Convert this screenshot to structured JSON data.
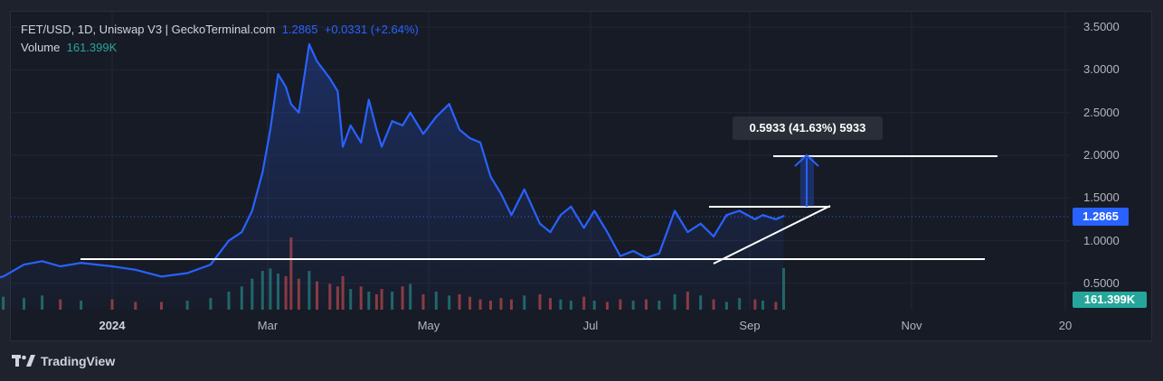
{
  "header": {
    "symbol_line": "FET/USD, 1D, Uniswap V3 | GeckoTerminal.com",
    "last_price": "1.2865",
    "change": "+0.0331 (+2.64%)",
    "volume_label": "Volume",
    "volume_value": "161.399K"
  },
  "price_scale_labels": [
    "3.5000",
    "3.0000",
    "2.5000",
    "2.0000",
    "1.5000",
    "1.0000",
    "0.5000"
  ],
  "time_labels": [
    {
      "text": "2024",
      "bold": true
    },
    {
      "text": "Mar",
      "bold": false
    },
    {
      "text": "May",
      "bold": false
    },
    {
      "text": "Jul",
      "bold": false
    },
    {
      "text": "Sep",
      "bold": false
    },
    {
      "text": "Nov",
      "bold": false
    },
    {
      "text": "20",
      "bold": false
    }
  ],
  "last_price_label": "1.2865",
  "volume_axis_label": "161.399K",
  "measure_label": "0.5933 (41.63%) 5933",
  "branding": "TradingView",
  "colors": {
    "background": "#171b26",
    "line": "#2962ff",
    "volume_up": "#26a69a",
    "volume_down": "#ef5350",
    "annotation": "#ffffff"
  },
  "chart_data": {
    "type": "line",
    "title": "FET/USD, 1D, Uniswap V3",
    "ylabel": "",
    "xlabel": "",
    "ylim": [
      0.35,
      3.6
    ],
    "x": [
      "2023-11-05",
      "2023-11-10",
      "2023-11-20",
      "2023-11-28",
      "2023-12-05",
      "2023-12-12",
      "2023-12-20",
      "2024-01-01",
      "2024-01-10",
      "2024-01-20",
      "2024-01-30",
      "2024-02-08",
      "2024-02-15",
      "2024-02-20",
      "2024-02-24",
      "2024-02-28",
      "2024-03-02",
      "2024-03-05",
      "2024-03-08",
      "2024-03-10",
      "2024-03-13",
      "2024-03-17",
      "2024-03-20",
      "2024-03-25",
      "2024-03-28",
      "2024-03-30",
      "2024-04-02",
      "2024-04-06",
      "2024-04-09",
      "2024-04-12",
      "2024-04-14",
      "2024-04-18",
      "2024-04-22",
      "2024-04-25",
      "2024-04-30",
      "2024-05-05",
      "2024-05-10",
      "2024-05-14",
      "2024-05-18",
      "2024-05-22",
      "2024-05-26",
      "2024-05-30",
      "2024-06-03",
      "2024-06-08",
      "2024-06-14",
      "2024-06-18",
      "2024-06-22",
      "2024-06-26",
      "2024-07-01",
      "2024-07-05",
      "2024-07-10",
      "2024-07-15",
      "2024-07-20",
      "2024-07-25",
      "2024-07-30",
      "2024-08-05",
      "2024-08-10",
      "2024-08-15",
      "2024-08-20",
      "2024-08-25",
      "2024-08-30",
      "2024-09-05",
      "2024-09-08",
      "2024-09-13",
      "2024-09-16"
    ],
    "series": [
      {
        "values": [
          0.52,
          0.52,
          0.58,
          0.72,
          0.76,
          0.7,
          0.74,
          0.7,
          0.66,
          0.58,
          0.62,
          0.72,
          1.0,
          1.1,
          1.35,
          1.8,
          2.3,
          2.95,
          2.8,
          2.6,
          2.5,
          3.3,
          3.1,
          2.9,
          2.75,
          2.1,
          2.35,
          2.15,
          2.65,
          2.3,
          2.1,
          2.4,
          2.35,
          2.5,
          2.25,
          2.45,
          2.6,
          2.3,
          2.2,
          2.15,
          1.75,
          1.55,
          1.3,
          1.6,
          1.2,
          1.1,
          1.3,
          1.4,
          1.15,
          1.35,
          1.1,
          0.82,
          0.88,
          0.8,
          0.85,
          1.35,
          1.1,
          1.2,
          1.05,
          1.3,
          1.35,
          1.25,
          1.3,
          1.25,
          1.29
        ]
      }
    ],
    "volume": [
      60,
      70,
      50,
      45,
      55,
      40,
      35,
      40,
      30,
      30,
      35,
      45,
      70,
      90,
      120,
      150,
      160,
      140,
      130,
      280,
      120,
      150,
      110,
      100,
      90,
      130,
      80,
      90,
      70,
      60,
      80,
      70,
      90,
      100,
      60,
      70,
      55,
      60,
      50,
      40,
      35,
      45,
      40,
      55,
      60,
      45,
      40,
      35,
      50,
      35,
      30,
      40,
      35,
      40,
      35,
      60,
      70,
      55,
      40,
      30,
      45,
      40,
      35,
      30,
      161
    ]
  }
}
